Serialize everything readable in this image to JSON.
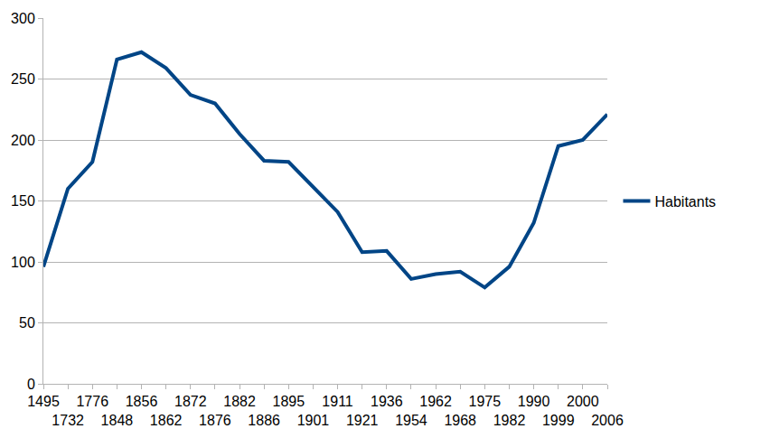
{
  "chart_data": {
    "type": "line",
    "categories": [
      "1495",
      "1732",
      "1776",
      "1848",
      "1856",
      "1862",
      "1872",
      "1876",
      "1882",
      "1886",
      "1895",
      "1901",
      "1911",
      "1921",
      "1936",
      "1954",
      "1962",
      "1968",
      "1975",
      "1982",
      "1990",
      "1999",
      "2000",
      "2006"
    ],
    "series": [
      {
        "name": "Habitants",
        "color": "#004586",
        "values": [
          96,
          160,
          182,
          266,
          272,
          259,
          237,
          230,
          205,
          183,
          182,
          162,
          141,
          108,
          109,
          86,
          90,
          92,
          79,
          96,
          132,
          195,
          200,
          221
        ]
      }
    ],
    "ylim": [
      0,
      300
    ],
    "yticks": [
      0,
      50,
      100,
      150,
      200,
      250,
      300
    ],
    "grid": true,
    "legend": "right"
  }
}
